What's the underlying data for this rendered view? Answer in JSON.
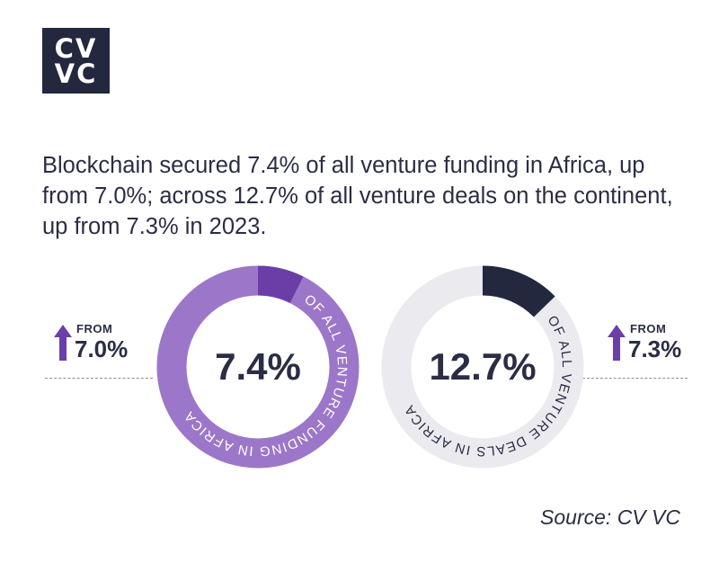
{
  "logo": {
    "line1": "CV",
    "line2": "VC"
  },
  "headline": "Blockchain secured 7.4% of all venture funding in Africa, up from 7.0%; across 12.7% of all venture deals on the continent, up from 7.3% in 2023.",
  "source": "Source: CV VC",
  "colors": {
    "text": "#2b2d45",
    "purple_ring": "#9c77c9",
    "purple_highlight": "#6a3ea6",
    "purple_arrow": "#6b3fa8",
    "gray_ring": "#ebebef",
    "navy_highlight": "#24283f"
  },
  "chart_data": [
    {
      "type": "pie",
      "donut": true,
      "metric": "venture funding in Africa",
      "values": [
        7.4,
        92.6
      ],
      "center_label": "7.4%",
      "ring_text": "OF ALL VENTURE FUNDING IN AFRICA",
      "previous": {
        "label": "FROM",
        "value": "7.0%",
        "direction": "up"
      }
    },
    {
      "type": "pie",
      "donut": true,
      "metric": "venture deals in Africa",
      "values": [
        12.7,
        87.3
      ],
      "center_label": "12.7%",
      "ring_text": "OF ALL VENTURE DEALS IN AFRICA",
      "previous": {
        "label": "FROM",
        "value": "7.3%",
        "direction": "up"
      }
    }
  ]
}
